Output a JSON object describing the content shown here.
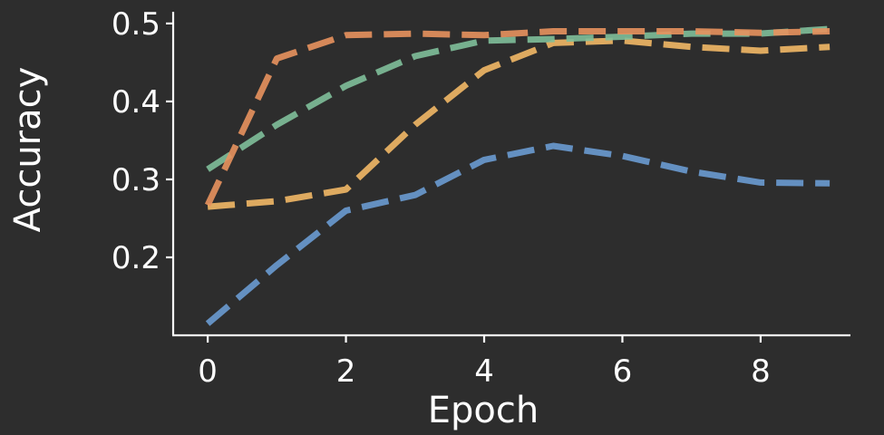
{
  "chart_data": {
    "type": "line",
    "title": "",
    "xlabel": "Epoch",
    "ylabel": "Accuracy",
    "xlim": [
      -0.5,
      9.3
    ],
    "ylim": [
      0.1,
      0.515
    ],
    "xticks": [
      0,
      2,
      4,
      6,
      8
    ],
    "yticks": [
      0.2,
      0.3,
      0.4,
      0.5
    ],
    "xtick_labels": [
      "0",
      "2",
      "4",
      "6",
      "8"
    ],
    "ytick_labels": [
      "0.2",
      "0.3",
      "0.4",
      "0.5"
    ],
    "grid": false,
    "legend": "none",
    "x": [
      0,
      1,
      2,
      3,
      4,
      5,
      6,
      7,
      8,
      9
    ],
    "series": [
      {
        "color": "#6a9bd1",
        "values": [
          0.115,
          0.19,
          0.26,
          0.28,
          0.325,
          0.343,
          0.33,
          0.31,
          0.296,
          0.295
        ]
      },
      {
        "color": "#f2b866",
        "values": [
          0.265,
          0.272,
          0.287,
          0.37,
          0.44,
          0.475,
          0.478,
          0.47,
          0.465,
          0.47
        ]
      },
      {
        "color": "#7fbf9a",
        "values": [
          0.313,
          0.37,
          0.42,
          0.458,
          0.478,
          0.48,
          0.483,
          0.487,
          0.487,
          0.493
        ]
      },
      {
        "color": "#e8925e",
        "values": [
          0.267,
          0.455,
          0.485,
          0.487,
          0.485,
          0.49,
          0.49,
          0.49,
          0.488,
          0.49
        ]
      }
    ]
  }
}
